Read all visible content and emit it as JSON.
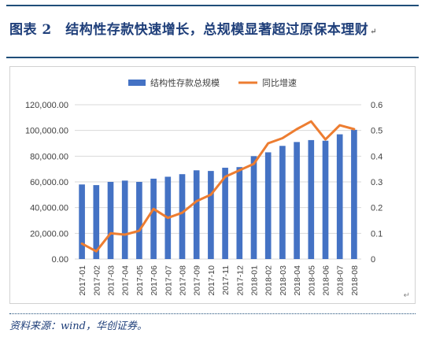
{
  "header": {
    "title": "图表 2　结构性存款快速增长，总规模显著超过原保本理财"
  },
  "source": "资料来源：wind，华创证券。",
  "chart_data": {
    "type": "bar+line",
    "categories": [
      "2017-01",
      "2017-02",
      "2017-03",
      "2017-04",
      "2017-05",
      "2017-06",
      "2017-07",
      "2017-08",
      "2017-09",
      "2017-10",
      "2017-11",
      "2017-12",
      "2018-01",
      "2018-02",
      "2018-03",
      "2018-04",
      "2018-05",
      "2018-06",
      "2018-07",
      "2018-08"
    ],
    "series": [
      {
        "name": "结构性存款总规模",
        "type": "bar",
        "axis": "left",
        "color": "#4472c4",
        "values": [
          58000,
          57500,
          60000,
          61000,
          60000,
          62500,
          64000,
          66000,
          69000,
          68500,
          71000,
          71500,
          80000,
          83000,
          88000,
          91000,
          92500,
          92000,
          97000,
          100500
        ]
      },
      {
        "name": "同比增速",
        "type": "line",
        "axis": "right",
        "color": "#ed7d31",
        "values": [
          0.06,
          0.03,
          0.1,
          0.095,
          0.11,
          0.195,
          0.16,
          0.18,
          0.225,
          0.25,
          0.32,
          0.345,
          0.37,
          0.45,
          0.47,
          0.505,
          0.535,
          0.465,
          0.52,
          0.505
        ]
      }
    ],
    "y_left": {
      "min": 0,
      "max": 120000,
      "ticks": [
        "0.00",
        "20,000.00",
        "40,000.00",
        "60,000.00",
        "80,000.00",
        "100,000.00",
        "120,000.00"
      ]
    },
    "y_right": {
      "min": 0,
      "max": 0.6,
      "ticks": [
        "0",
        "0.1",
        "0.2",
        "0.3",
        "0.4",
        "0.5",
        "0.6"
      ]
    },
    "legend_position": "top",
    "grid": true
  }
}
